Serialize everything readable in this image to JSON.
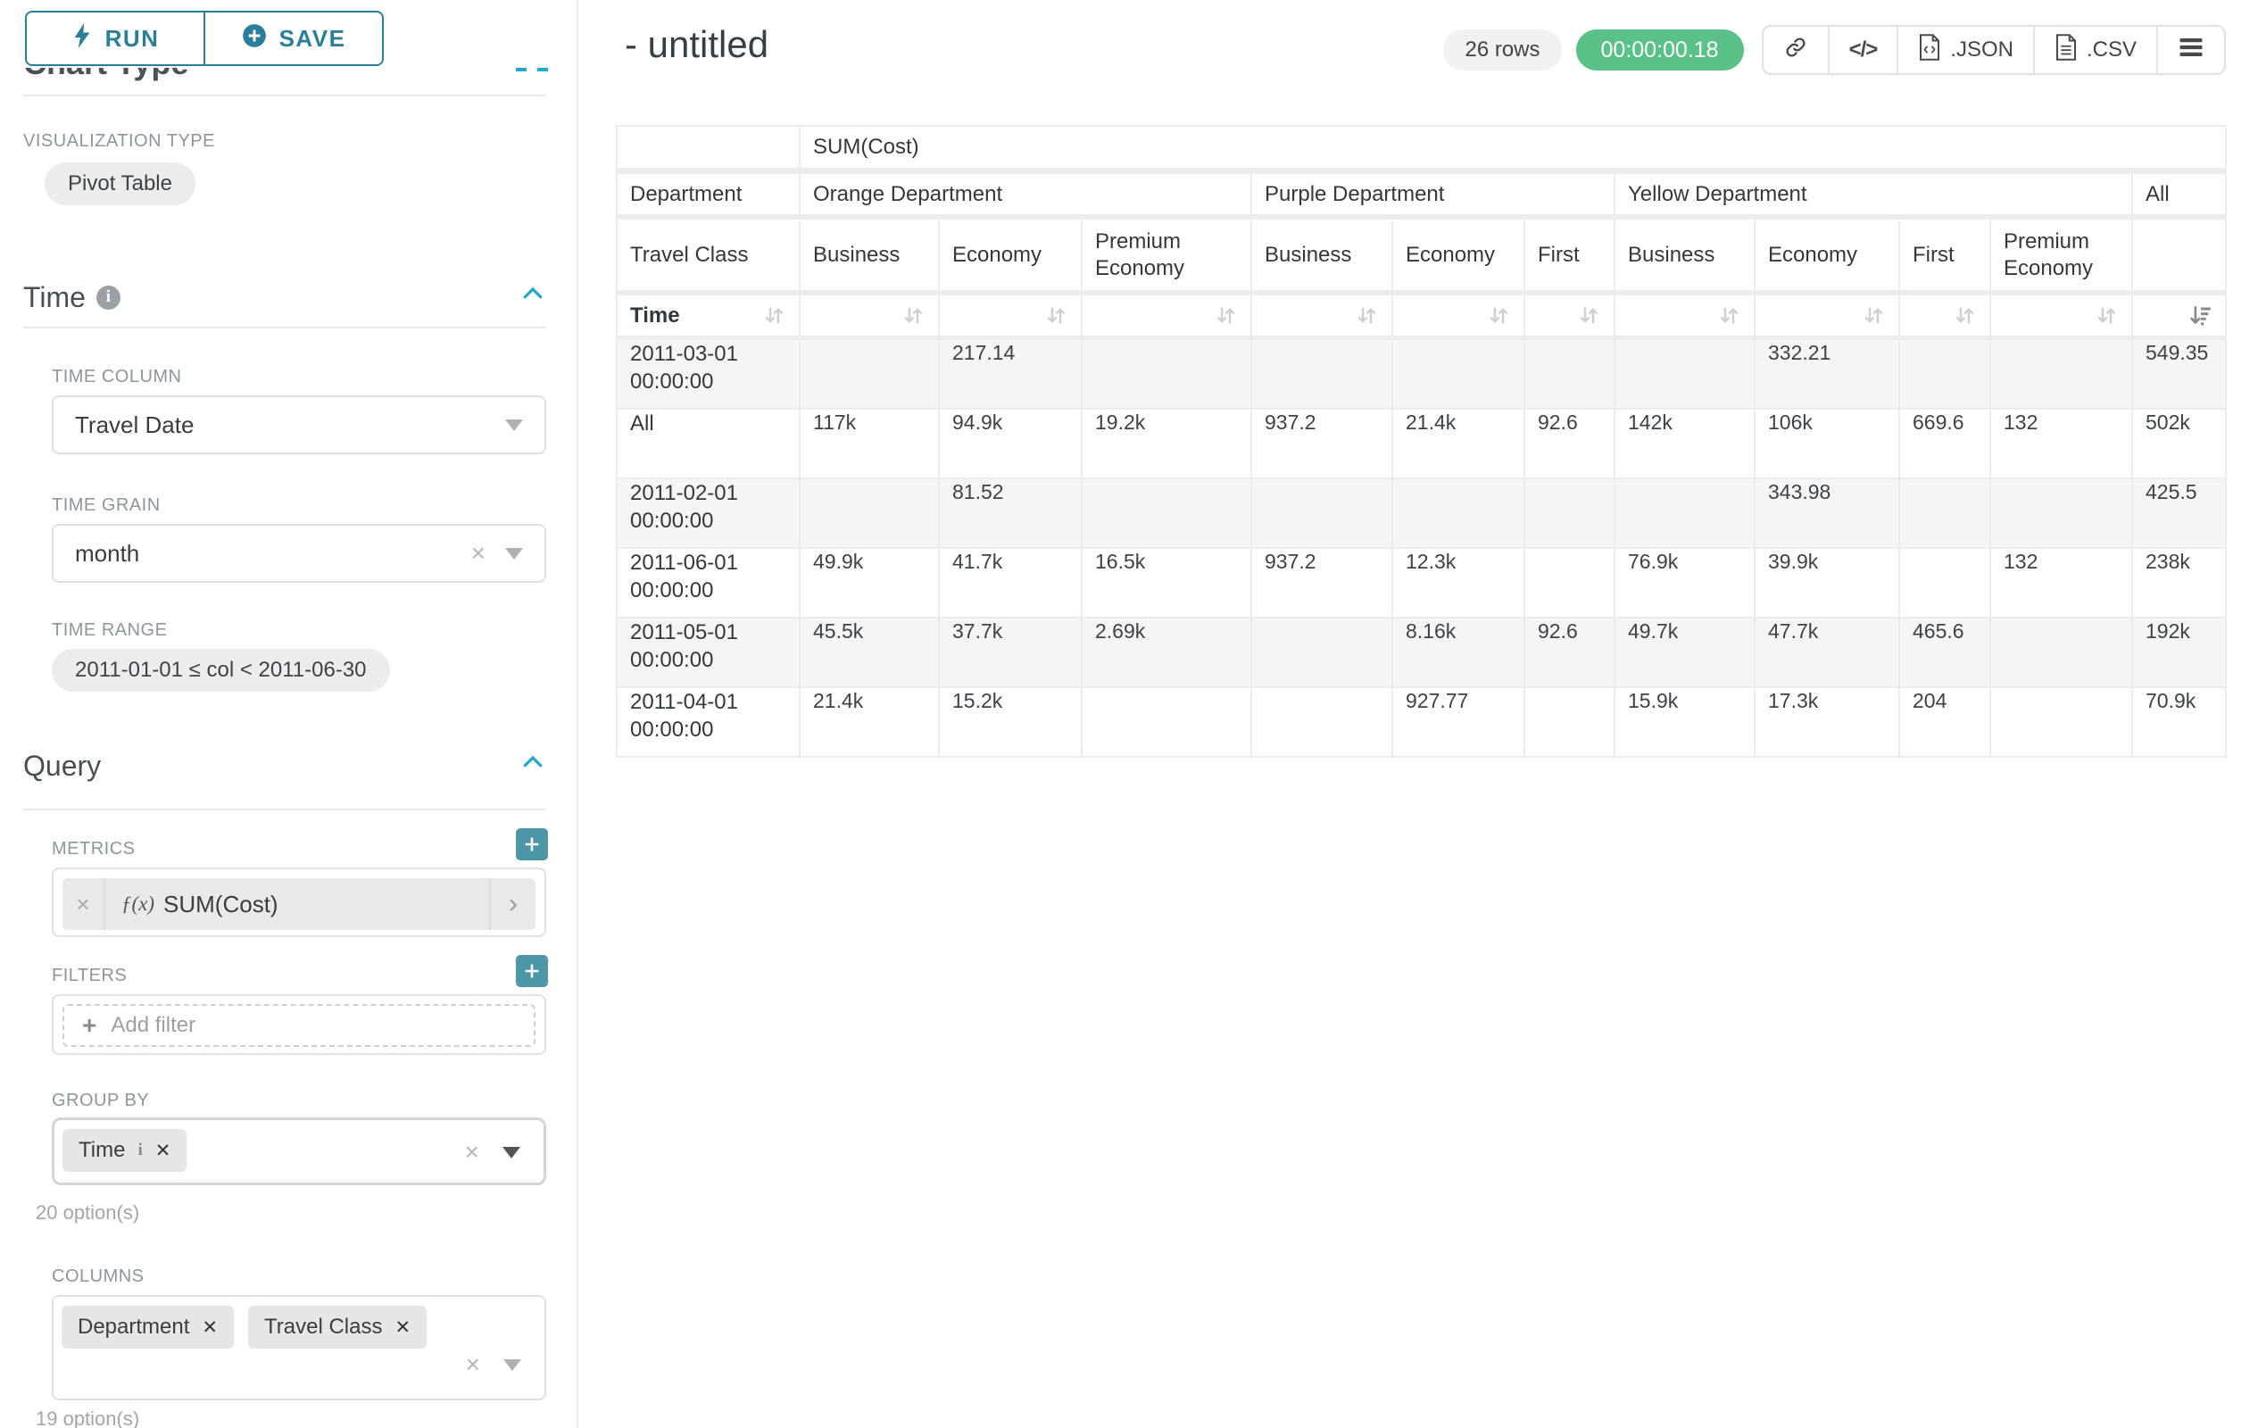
{
  "sidebar": {
    "run_label": "RUN",
    "save_label": "SAVE",
    "chart_type_heading": "Chart Type",
    "visualization": {
      "label": "VISUALIZATION TYPE",
      "value": "Pivot Table"
    },
    "time": {
      "title": "Time",
      "column_label": "TIME COLUMN",
      "column_value": "Travel Date",
      "grain_label": "TIME GRAIN",
      "grain_value": "month",
      "range_label": "TIME RANGE",
      "range_value": "2011-01-01 ≤ col < 2011-06-30"
    },
    "query": {
      "title": "Query",
      "metrics_label": "METRICS",
      "metric_fx": "ƒ(x)",
      "metric_value": "SUM(Cost)",
      "filters_label": "FILTERS",
      "add_filter_label": "Add filter",
      "group_by_label": "GROUP BY",
      "group_by_chips": [
        "Time"
      ],
      "group_by_hint": "20 option(s)",
      "columns_label": "COLUMNS",
      "columns_chips": [
        "Department",
        "Travel Class"
      ],
      "columns_hint": "19 option(s)"
    }
  },
  "header": {
    "title": "- untitled",
    "row_count": "26 rows",
    "timer": "00:00:00.18",
    "export_json_label": ".JSON",
    "export_csv_label": ".CSV"
  },
  "colors": {
    "accent_teal": "#2b7e97",
    "accent_blue": "#20a7c9",
    "success_green": "#5ac189"
  },
  "pivot": {
    "metric_label": "SUM(Cost)",
    "department_label": "Department",
    "travel_class_label": "Travel Class",
    "time_label": "Time",
    "all_label": "All",
    "column_groups": [
      {
        "label": "Orange Department",
        "classes": [
          "Business",
          "Economy",
          "Premium Economy"
        ]
      },
      {
        "label": "Purple Department",
        "classes": [
          "Business",
          "Economy",
          "First"
        ]
      },
      {
        "label": "Yellow Department",
        "classes": [
          "Business",
          "Economy",
          "First",
          "Premium Economy"
        ]
      }
    ],
    "rows": [
      {
        "label": "2011-03-01 00:00:00",
        "values": [
          "",
          "217.14",
          "",
          "",
          "",
          "",
          "",
          "332.21",
          "",
          "",
          "549.35"
        ]
      },
      {
        "label": "All",
        "values": [
          "117k",
          "94.9k",
          "19.2k",
          "937.2",
          "21.4k",
          "92.6",
          "142k",
          "106k",
          "669.6",
          "132",
          "502k"
        ]
      },
      {
        "label": "2011-02-01 00:00:00",
        "values": [
          "",
          "81.52",
          "",
          "",
          "",
          "",
          "",
          "343.98",
          "",
          "",
          "425.5"
        ]
      },
      {
        "label": "2011-06-01 00:00:00",
        "values": [
          "49.9k",
          "41.7k",
          "16.5k",
          "937.2",
          "12.3k",
          "",
          "76.9k",
          "39.9k",
          "",
          "132",
          "238k"
        ]
      },
      {
        "label": "2011-05-01 00:00:00",
        "values": [
          "45.5k",
          "37.7k",
          "2.69k",
          "",
          "8.16k",
          "92.6",
          "49.7k",
          "47.7k",
          "465.6",
          "",
          "192k"
        ]
      },
      {
        "label": "2011-04-01 00:00:00",
        "values": [
          "21.4k",
          "15.2k",
          "",
          "",
          "927.77",
          "",
          "15.9k",
          "17.3k",
          "204",
          "",
          "70.9k"
        ]
      }
    ]
  }
}
